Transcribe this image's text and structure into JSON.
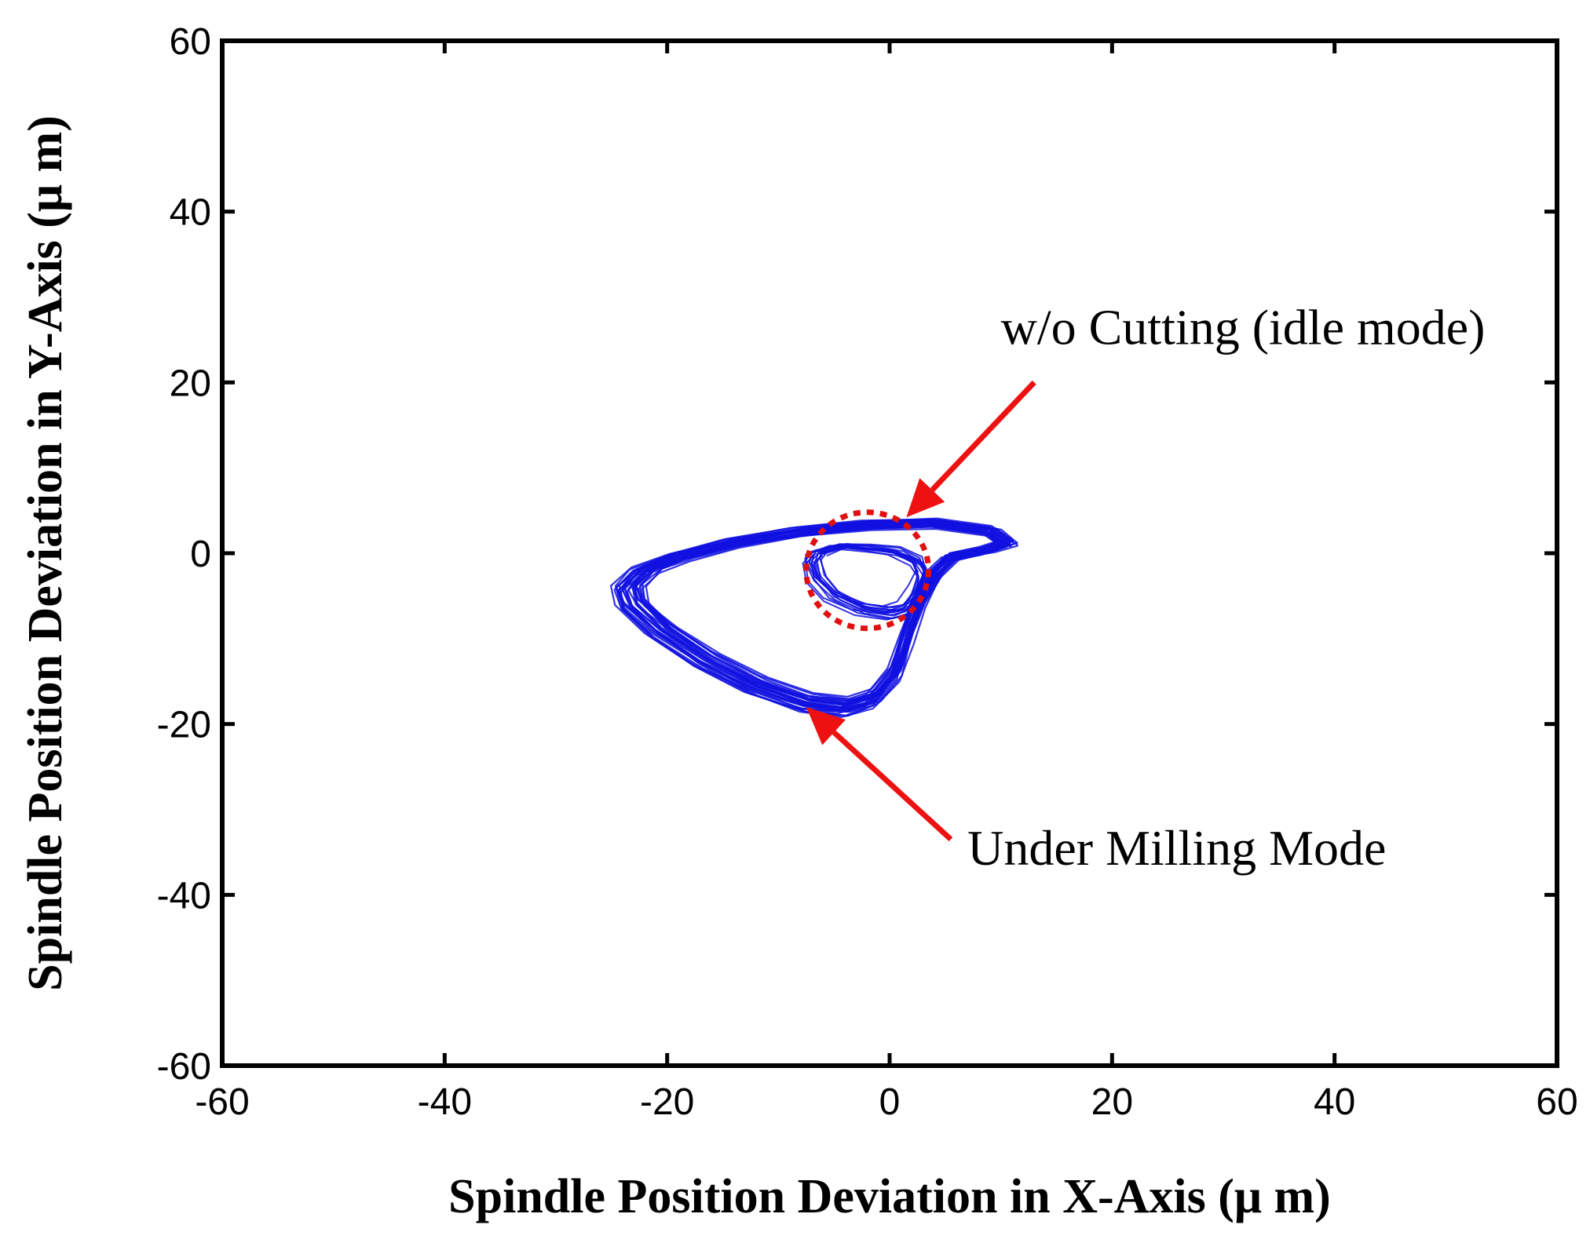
{
  "chart_data": {
    "type": "line",
    "xlabel": "Spindle Position Deviation in X-Axis (μ m)",
    "ylabel": "Spindle Position Deviation in Y-Axis (μ m)",
    "xlim": [
      -60,
      60
    ],
    "ylim": [
      -60,
      60
    ],
    "xticks": [
      -60,
      -40,
      -20,
      0,
      20,
      40,
      60
    ],
    "yticks": [
      -60,
      -40,
      -20,
      0,
      20,
      40,
      60
    ],
    "xtick_labels": [
      "-60",
      "-40",
      "-20",
      "0",
      "20",
      "40",
      "60"
    ],
    "ytick_labels": [
      "-60",
      "-40",
      "-20",
      "0",
      "20",
      "40",
      "60"
    ],
    "grid": false,
    "series": [
      {
        "color": "#1010e0",
        "orbit": {
          "x": [
            10.5,
            9.0,
            4.0,
            -2.0,
            -8.0,
            -14.0,
            -19.0,
            -22.0,
            -23.5,
            -23.0,
            -20.5,
            -16.5,
            -12.0,
            -7.5,
            -4.0,
            -1.5,
            0.5,
            1.5,
            2.5,
            4.0,
            5.5,
            8.5,
            10.5
          ],
          "y": [
            1.2,
            2.6,
            3.5,
            3.3,
            2.5,
            1.2,
            -0.5,
            -2.0,
            -4.0,
            -6.0,
            -9.0,
            -12.5,
            -15.5,
            -17.5,
            -18.0,
            -17.0,
            -14.0,
            -10.0,
            -6.0,
            -2.5,
            -0.5,
            0.3,
            1.2
          ]
        },
        "idle_loop": {
          "x": [
            -6.5,
            -4.5,
            -2.0,
            0.5,
            2.5,
            3.0,
            2.5,
            1.5,
            0.0,
            -2.5,
            -5.0,
            -6.5,
            -7.0,
            -6.5
          ],
          "y": [
            0.0,
            0.8,
            0.6,
            0.2,
            -1.0,
            -2.5,
            -4.5,
            -6.5,
            -7.0,
            -6.5,
            -5.0,
            -3.0,
            -1.0,
            0.0
          ]
        }
      }
    ],
    "highlight_circle": {
      "center": [
        -2.0,
        -2.0
      ],
      "radius_x": 5.5,
      "radius_y": 6.8,
      "color": "#e01010",
      "style": "dotted"
    },
    "annotations": [
      {
        "text": "w/o Cutting (idle mode)",
        "arrow_from": [
          13,
          20
        ],
        "arrow_to": [
          1.5,
          4.2
        ],
        "text_anchor": [
          10,
          24.5
        ]
      },
      {
        "text": "Under Milling Mode",
        "arrow_from": [
          5.5,
          -33.5
        ],
        "arrow_to": [
          -7.5,
          -18.0
        ],
        "text_anchor": [
          7,
          -36.5
        ]
      }
    ],
    "arrow_color": "#ee1111"
  }
}
